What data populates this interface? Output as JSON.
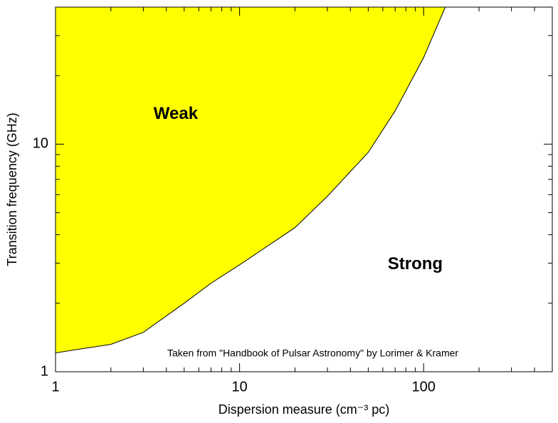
{
  "chart_data": {
    "type": "area",
    "x": [
      1,
      2,
      3,
      5,
      7,
      10,
      20,
      30,
      50,
      70,
      100,
      131
    ],
    "series": [
      {
        "color": "#ffff00",
        "values": [
          1.21,
          1.32,
          1.49,
          2.0,
          2.45,
          2.95,
          4.3,
          5.9,
          9.2,
          14,
          24,
          40
        ]
      }
    ],
    "xlabel": "Dispersion measure (cm⁻³ pc)",
    "ylabel": "Transition frequency (GHz)",
    "xscale": "log",
    "yscale": "log",
    "xlim": [
      1,
      500
    ],
    "ylim": [
      1,
      40
    ],
    "xticks": [
      1,
      10,
      100
    ],
    "yticks": [
      1,
      10
    ],
    "xminorticks": [
      2,
      3,
      4,
      5,
      6,
      7,
      8,
      9,
      20,
      30,
      40,
      50,
      60,
      70,
      80,
      90,
      200,
      300,
      400,
      500
    ],
    "yminorticks": [
      2,
      3,
      4,
      5,
      6,
      7,
      8,
      9,
      20,
      30,
      40
    ],
    "annotations": [
      {
        "text": "Weak",
        "x": 4.5,
        "y": 13.5
      },
      {
        "text": "Strong",
        "x": 90,
        "y": 2.95
      },
      {
        "text": "Taken from \"Handbook of Pulsar Astronomy\" by Lorimer & Kramer",
        "x": 25,
        "y": 1.2
      }
    ]
  }
}
